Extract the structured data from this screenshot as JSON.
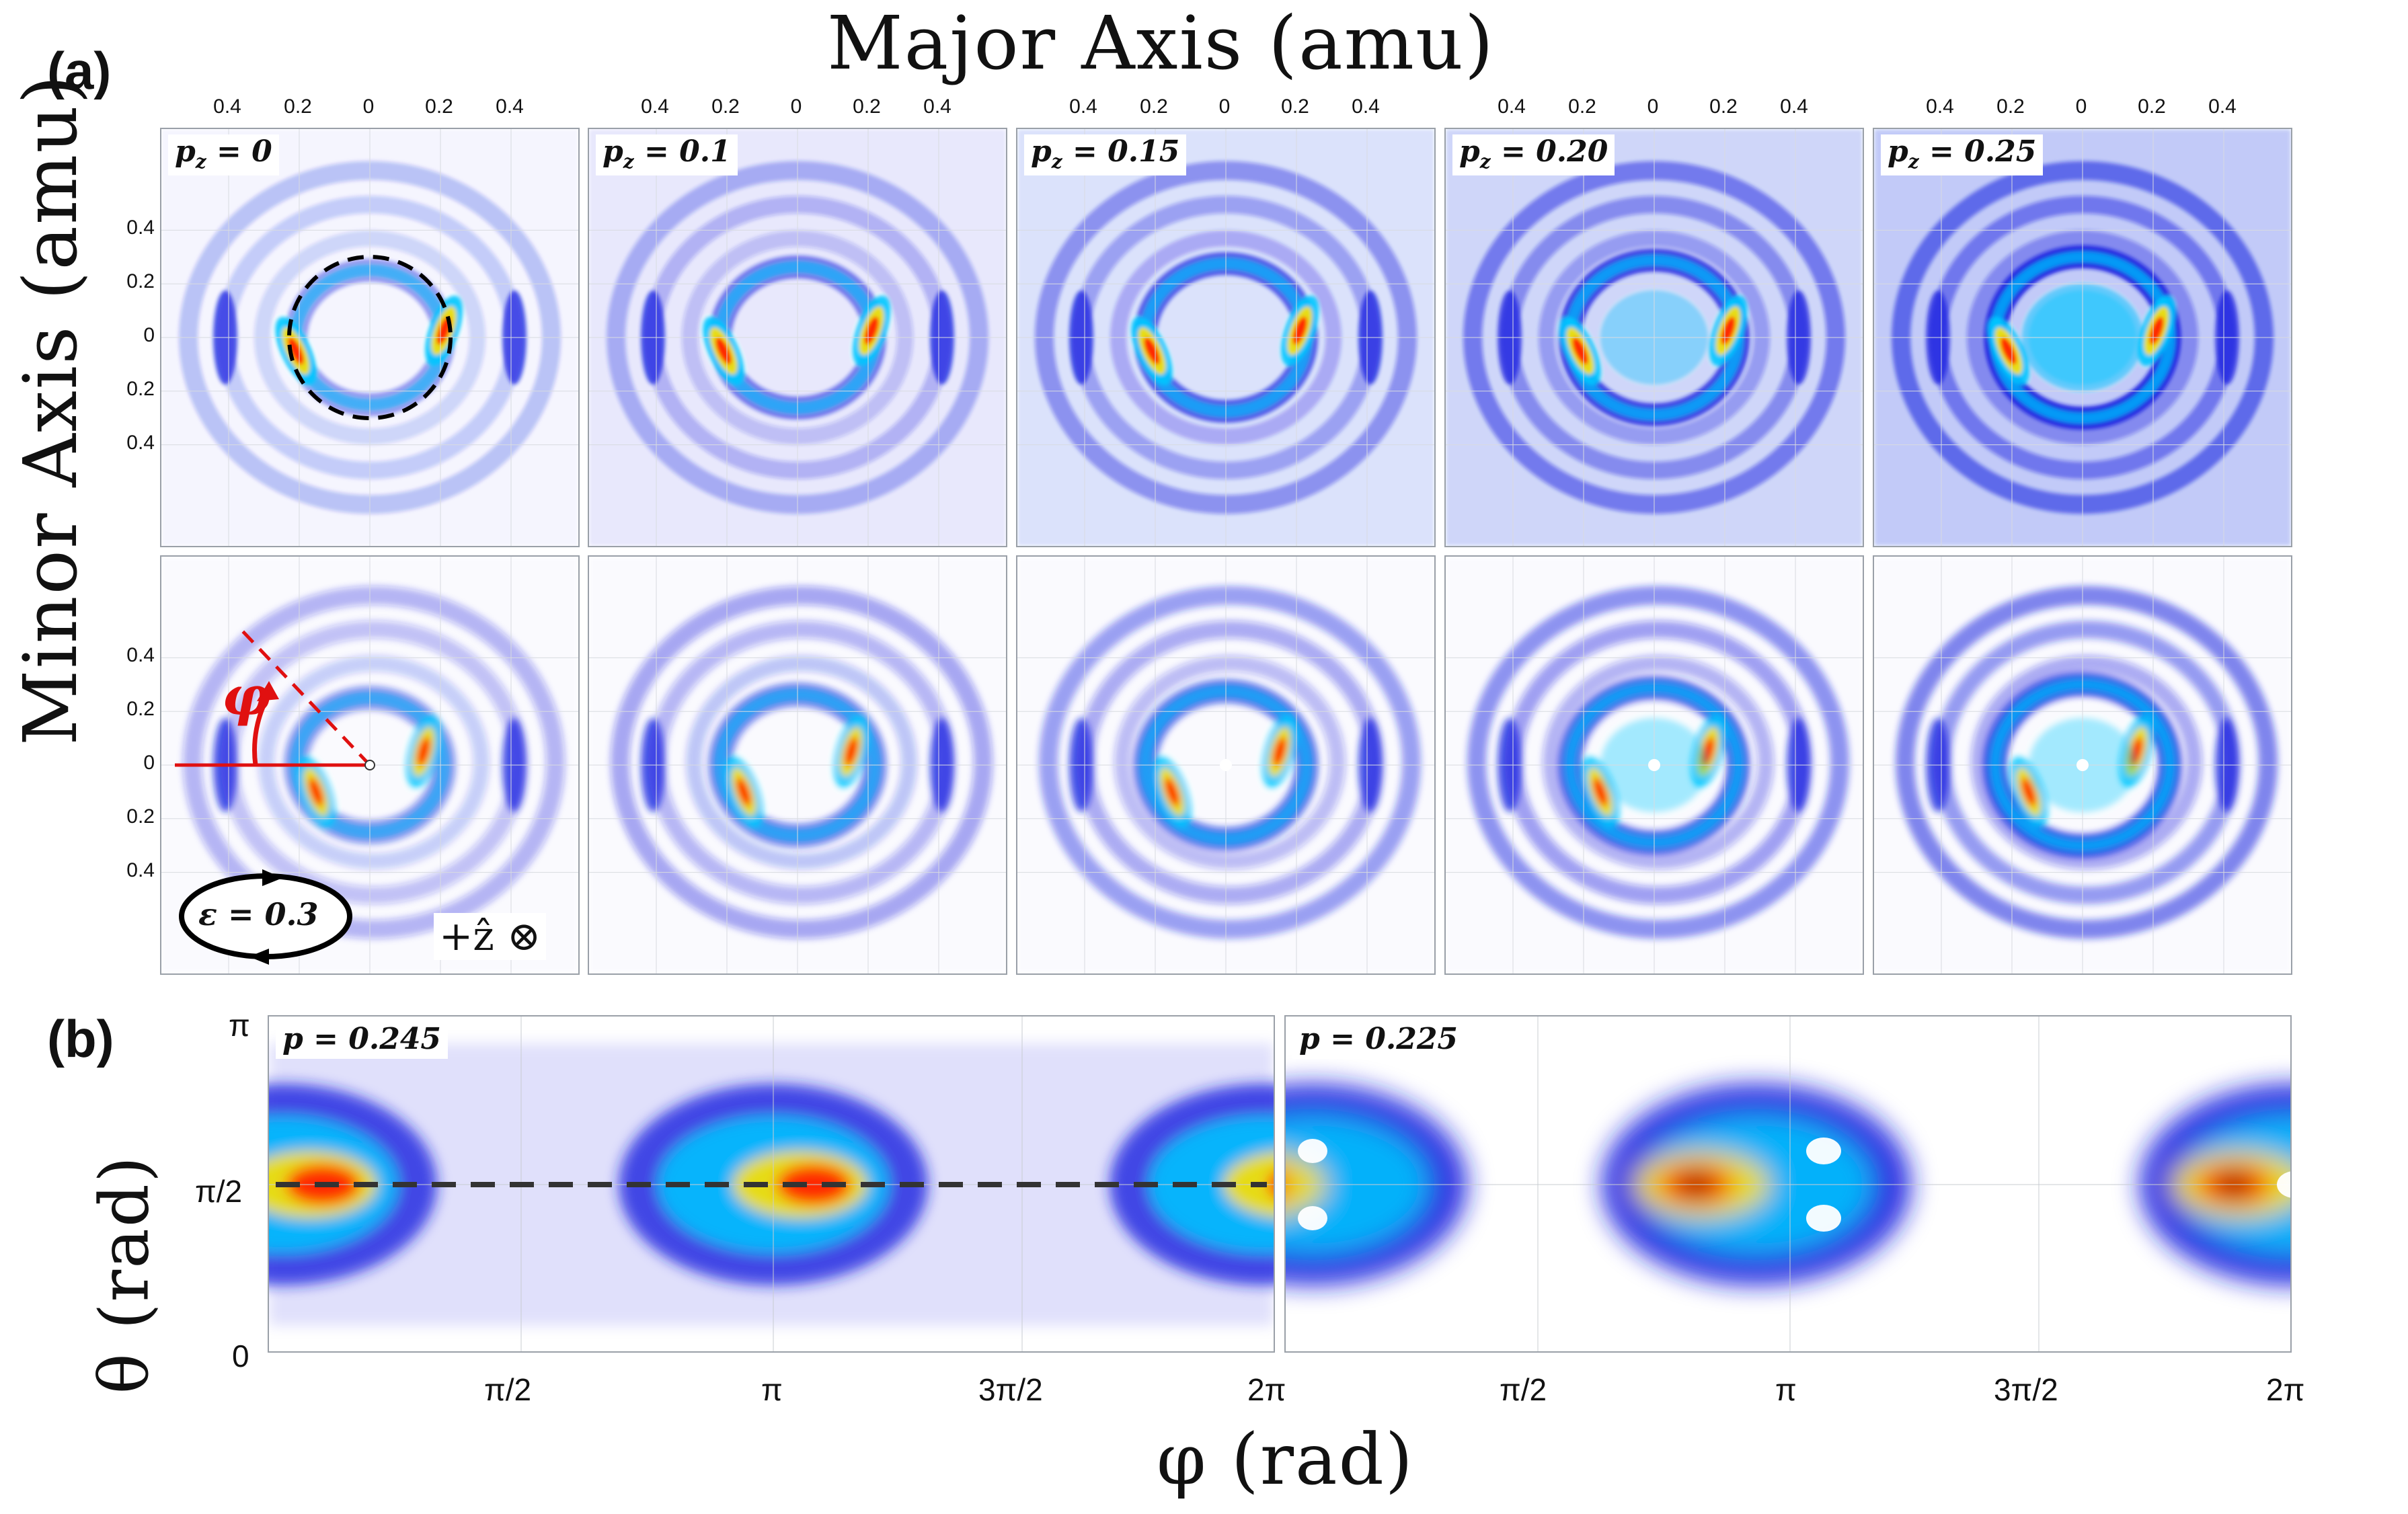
{
  "figure": {
    "label_a": "(a)",
    "label_b": "(b)",
    "top_title": "Major Axis (amu)",
    "left_label": "Minor Axis (amu)",
    "b_ylabel": "θ (rad)",
    "b_xlabel": "φ (rad)"
  },
  "panel_a": {
    "top_ticks": [
      "0.4",
      "0.2",
      "0",
      "0.2",
      "0.4"
    ],
    "left_ticks": [
      "0.4",
      "0.2",
      "0",
      "0.2",
      "0.4"
    ],
    "columns": [
      {
        "tag": "p",
        "sub": "z",
        "value": " = 0"
      },
      {
        "tag": "p",
        "sub": "z",
        "value": " = 0.1"
      },
      {
        "tag": "p",
        "sub": "z",
        "value": " = 0.15"
      },
      {
        "tag": "p",
        "sub": "z",
        "value": " = 0.20"
      },
      {
        "tag": "p",
        "sub": "z",
        "value": " = 0.25"
      }
    ],
    "annotations": {
      "phi": "φ",
      "epsilon": "ε = 0.3",
      "zdir": "+ẑ ⊗"
    }
  },
  "panel_b": {
    "left_tag": "p = 0.245",
    "right_tag": "p = 0.225",
    "y_ticks": [
      "π",
      "π/2",
      "0"
    ],
    "x_ticks": [
      "π/2",
      "π",
      "3π/2",
      "2π"
    ]
  },
  "colors": {
    "colormap": [
      "#ffffff",
      "#1520e0",
      "#00c8ff",
      "#ffe000",
      "#ff2000",
      "#8b0000"
    ],
    "frame": "#9aa0a8",
    "annotation_red": "#e01010"
  }
}
